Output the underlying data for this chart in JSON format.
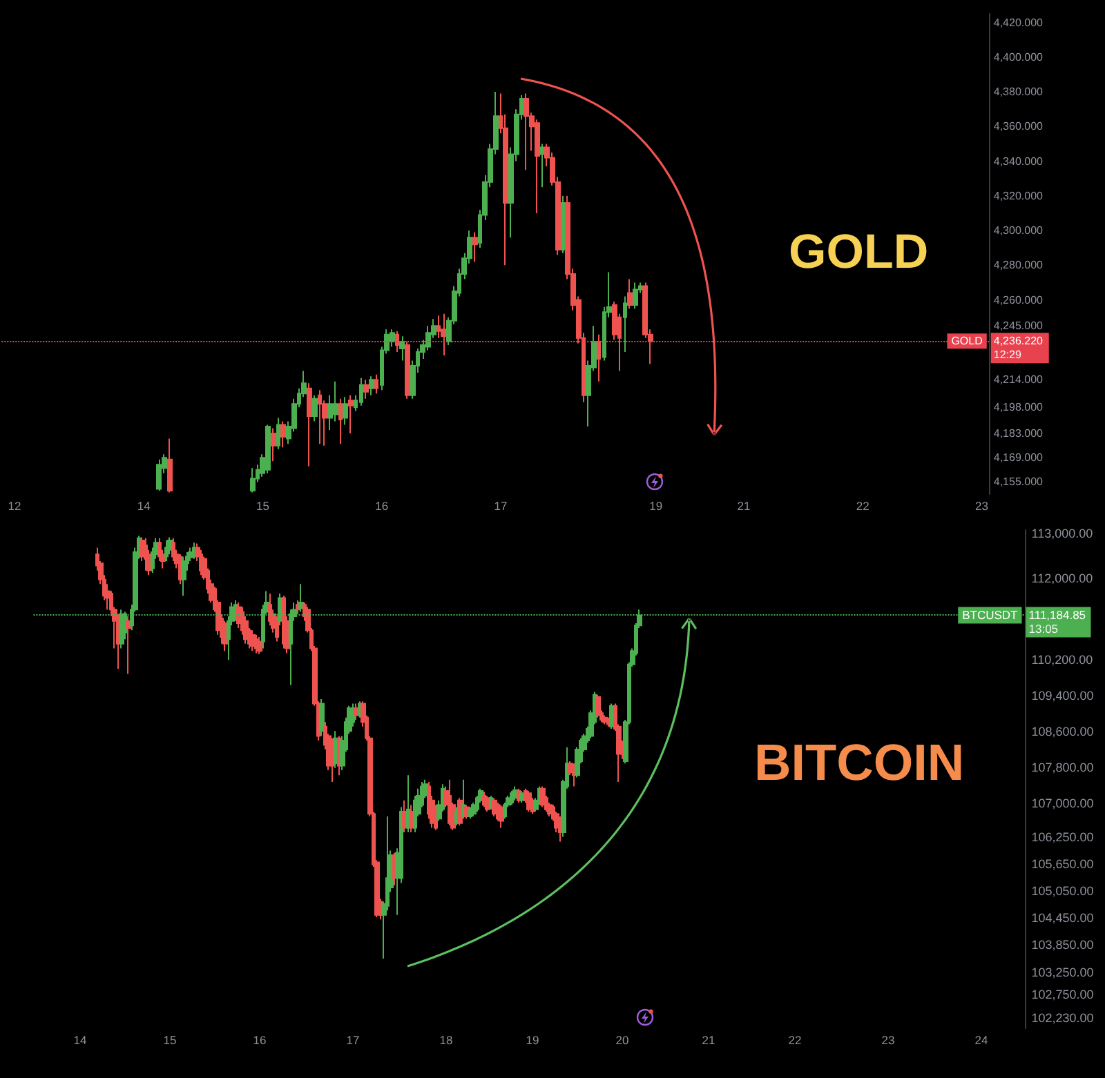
{
  "chart_data": [
    {
      "type": "candlestick",
      "title": "GOLD",
      "categories": [
        null,
        null,
        "12",
        null,
        null,
        null,
        null,
        null,
        null,
        null,
        null,
        null,
        null,
        null,
        null,
        null,
        null,
        null,
        null,
        null,
        null,
        null,
        null,
        null,
        null,
        null,
        null,
        "14",
        null,
        null,
        null,
        null,
        null,
        null,
        null,
        null,
        null,
        null,
        null,
        null,
        null,
        null,
        null,
        null,
        null,
        null,
        null,
        null,
        null,
        null,
        "15",
        null,
        null,
        null,
        null,
        null,
        null,
        null,
        null,
        null,
        null,
        null,
        null,
        null,
        null,
        null,
        null,
        null,
        null,
        null,
        null,
        null,
        null,
        "16",
        null,
        null,
        null,
        null,
        null,
        null,
        null,
        null,
        null,
        null,
        null,
        null,
        null,
        null,
        null,
        null,
        null,
        null,
        null,
        null,
        null,
        null,
        "17",
        null,
        null,
        null,
        null,
        null,
        null,
        null,
        null,
        null,
        null,
        null,
        null,
        null,
        null,
        null,
        null,
        null,
        null,
        null,
        null,
        null,
        null,
        null,
        null,
        null,
        null,
        null,
        null,
        null,
        "19",
        null,
        null,
        null,
        null,
        null,
        null,
        null,
        null,
        null,
        null,
        null,
        null,
        null,
        null,
        null,
        null,
        "21",
        null,
        null,
        null,
        null,
        null,
        null,
        null,
        null,
        null,
        null,
        null,
        null,
        null,
        null,
        null,
        null,
        null,
        null,
        null,
        null,
        null,
        null,
        "22",
        null,
        null,
        null,
        null,
        null,
        null,
        null,
        null,
        null,
        null,
        null,
        null,
        null,
        null,
        null,
        null,
        null,
        null,
        null,
        null,
        null,
        null,
        "23",
        null
      ],
      "ohlc": [
        null,
        null,
        null,
        null,
        null,
        null,
        null,
        null,
        null,
        null,
        null,
        null,
        null,
        null,
        null,
        null,
        null,
        null,
        null,
        null,
        null,
        null,
        null,
        null,
        null,
        null,
        null,
        null,
        null,
        null,
        [
          4151,
          4168,
          4150,
          4165
        ],
        [
          4163,
          4171,
          4160,
          4169
        ],
        [
          4168,
          4180,
          4149,
          4150
        ],
        null,
        null,
        null,
        null,
        null,
        null,
        null,
        null,
        null,
        null,
        null,
        null,
        null,
        null,
        null,
        [
          4150,
          4163,
          4149,
          4157
        ],
        [
          4157,
          4165,
          4155,
          4162
        ],
        [
          4160,
          4171,
          4158,
          4169
        ],
        [
          4162,
          4188,
          4160,
          4187
        ],
        [
          4183,
          4186,
          4167,
          4176
        ],
        [
          4176,
          4192,
          4174,
          4188
        ],
        [
          4188,
          4190,
          4175,
          4181
        ],
        [
          4180,
          4190,
          4177,
          4187
        ],
        [
          4186,
          4203,
          4184,
          4200
        ],
        [
          4200,
          4209,
          4198,
          4206
        ],
        [
          4206,
          4219,
          4204,
          4212
        ],
        [
          4209,
          4212,
          4164,
          4193
        ],
        [
          4193,
          4205,
          4190,
          4203
        ],
        [
          4205,
          4208,
          4177,
          4200
        ],
        [
          4200,
          4202,
          4176,
          4192
        ],
        [
          4192,
          4205,
          4185,
          4200
        ],
        [
          4194,
          4213,
          4190,
          4200
        ],
        [
          4200,
          4203,
          4177,
          4191
        ],
        [
          4192,
          4204,
          4188,
          4200
        ],
        [
          4202,
          4205,
          4183,
          4199
        ],
        [
          4198,
          4205,
          4196,
          4202
        ],
        [
          4201,
          4215,
          4199,
          4211
        ],
        [
          4211,
          4214,
          4203,
          4207
        ],
        [
          4209,
          4216,
          4205,
          4214
        ],
        [
          4214,
          4217,
          4206,
          4209
        ],
        [
          4211,
          4233,
          4208,
          4231
        ],
        [
          4231,
          4243,
          4229,
          4240
        ],
        [
          4236,
          4243,
          4233,
          4241
        ],
        [
          4240,
          4242,
          4230,
          4234
        ],
        [
          4232,
          4239,
          4225,
          4236
        ],
        [
          4234,
          4236,
          4203,
          4205
        ],
        [
          4205,
          4225,
          4203,
          4222
        ],
        [
          4222,
          4232,
          4218,
          4230
        ],
        [
          4230,
          4237,
          4226,
          4234
        ],
        [
          4233,
          4245,
          4231,
          4241
        ],
        [
          4240,
          4249,
          4238,
          4245
        ],
        [
          4245,
          4251,
          4238,
          4242
        ],
        [
          4243,
          4252,
          4228,
          4239
        ],
        [
          4236,
          4250,
          4234,
          4248
        ],
        [
          4248,
          4268,
          4246,
          4265
        ],
        [
          4264,
          4278,
          4262,
          4275
        ],
        [
          4275,
          4287,
          4272,
          4284
        ],
        [
          4284,
          4300,
          4281,
          4296
        ],
        [
          4296,
          4299,
          4282,
          4292
        ],
        [
          4293,
          4312,
          4290,
          4309
        ],
        [
          4309,
          4332,
          4306,
          4328
        ],
        [
          4328,
          4350,
          4325,
          4347
        ],
        [
          4347,
          4380,
          4344,
          4366
        ],
        [
          4366,
          4379,
          4356,
          4359
        ],
        [
          4359,
          4367,
          4280,
          4316
        ],
        [
          4316,
          4348,
          4296,
          4344
        ],
        [
          4344,
          4370,
          4340,
          4367
        ],
        [
          4367,
          4378,
          4364,
          4376
        ],
        [
          4376,
          4379,
          4335,
          4366
        ],
        [
          4366,
          4368,
          4346,
          4360
        ],
        [
          4362,
          4364,
          4310,
          4343
        ],
        [
          4344,
          4350,
          4325,
          4348
        ],
        [
          4348,
          4350,
          4337,
          4342
        ],
        [
          4342,
          4345,
          4326,
          4328
        ],
        [
          4328,
          4331,
          4286,
          4289
        ],
        [
          4289,
          4320,
          4287,
          4316
        ],
        [
          4316,
          4320,
          4272,
          4275
        ],
        [
          4275,
          4278,
          4254,
          4257
        ],
        [
          4260,
          4262,
          4235,
          4238
        ],
        [
          4238,
          4241,
          4201,
          4205
        ],
        [
          4205,
          4225,
          4187,
          4222
        ],
        [
          4221,
          4245,
          4219,
          4236
        ],
        [
          4236,
          4240,
          4213,
          4226
        ],
        [
          4227,
          4256,
          4225,
          4253
        ],
        [
          4253,
          4276,
          4250,
          4256
        ],
        [
          4257,
          4259,
          4237,
          4240
        ],
        [
          4250,
          4252,
          4219,
          4238
        ],
        [
          4250,
          4262,
          4230,
          4258
        ],
        [
          4264,
          4272,
          4255,
          4257
        ],
        [
          4257,
          4270,
          4255,
          4266
        ],
        [
          4266,
          4270,
          4264,
          4268
        ],
        [
          4268,
          4270,
          4238,
          4240
        ],
        [
          4240,
          4243,
          4223,
          4236.22
        ],
        null,
        null,
        null,
        null,
        null,
        null,
        null,
        null,
        null,
        null,
        null,
        null,
        null,
        null,
        null,
        null,
        null,
        null,
        null,
        null,
        null,
        null,
        null,
        null,
        null,
        null,
        null,
        null,
        null,
        null,
        null,
        null,
        null,
        null,
        null,
        null,
        null,
        null,
        null,
        null,
        null,
        null,
        null,
        null,
        null,
        null,
        null,
        null,
        null,
        null,
        null,
        null,
        null,
        null,
        null,
        null,
        null,
        null,
        null,
        null,
        null,
        null,
        null,
        null,
        null
      ],
      "ylim": [
        4148,
        4425
      ],
      "yticks": [
        {
          "value": 4155,
          "label": "4,155.000"
        },
        {
          "value": 4169,
          "label": "4,169.000"
        },
        {
          "value": 4183,
          "label": "4,183.000"
        },
        {
          "value": 4198,
          "label": "4,198.000"
        },
        {
          "value": 4214,
          "label": "4,214.000"
        },
        {
          "value": 4245,
          "label": "4,245.000"
        },
        {
          "value": 4260,
          "label": "4,260.000"
        },
        {
          "value": 4280,
          "label": "4,280.000"
        },
        {
          "value": 4300,
          "label": "4,300.000"
        },
        {
          "value": 4320,
          "label": "4,320.000"
        },
        {
          "value": 4340,
          "label": "4,340.000"
        },
        {
          "value": 4360,
          "label": "4,360.000"
        },
        {
          "value": 4380,
          "label": "4,380.000"
        },
        {
          "value": 4400,
          "label": "4,400.000"
        },
        {
          "value": 4420,
          "label": "4,420.000"
        }
      ],
      "ref_lines": [
        {
          "axis": "y",
          "value": 4236.22,
          "label": "GOLD",
          "color": "#e8424f",
          "line_style": "dotted"
        }
      ],
      "annotations": [
        "4,236.220",
        "12:29"
      ]
    },
    {
      "type": "candlestick",
      "title": "BITCOIN",
      "categories": [
        null,
        null,
        null,
        null,
        null,
        null,
        null,
        null,
        null,
        null,
        null,
        null,
        null,
        "14",
        null,
        null,
        null,
        null,
        null,
        null,
        null,
        null,
        null,
        null,
        null,
        null,
        null,
        null,
        null,
        null,
        null,
        null,
        null,
        null,
        null,
        null,
        null,
        null,
        null,
        "15",
        null,
        null,
        null,
        null,
        null,
        null,
        null,
        null,
        null,
        null,
        null,
        null,
        null,
        null,
        null,
        null,
        null,
        null,
        null,
        null,
        null,
        null,
        null,
        null,
        null,
        "16",
        null,
        null,
        null,
        null,
        null,
        null,
        null,
        null,
        null,
        null,
        null,
        null,
        null,
        null,
        null,
        null,
        null,
        null,
        null,
        null,
        null,
        null,
        null,
        null,
        null,
        null,
        "17",
        null,
        null,
        null,
        null,
        null,
        null,
        null,
        null,
        null,
        null,
        null,
        null,
        null,
        null,
        null,
        null,
        null,
        null,
        null,
        null,
        null,
        null,
        null,
        null,
        null,
        null,
        "18",
        null,
        null,
        null,
        null,
        null,
        null,
        null,
        null,
        null,
        null,
        null,
        null,
        null,
        null,
        null,
        null,
        null,
        null,
        null,
        null,
        null,
        null,
        null,
        null,
        "19",
        null,
        null,
        null,
        null,
        null,
        null,
        null,
        null,
        null,
        null,
        null,
        null,
        null,
        null,
        null,
        null,
        null,
        null,
        null,
        null,
        null,
        null,
        null,
        null,
        null,
        "20",
        null,
        null,
        null,
        null,
        null,
        null,
        null,
        null,
        null,
        null,
        null,
        null,
        null,
        null,
        null,
        null,
        null,
        null,
        null,
        null,
        null,
        null,
        null,
        null,
        "21",
        null,
        null,
        null,
        null,
        null,
        null,
        null,
        null,
        null,
        null,
        null,
        null,
        null,
        null,
        null,
        null,
        null,
        null,
        null,
        null,
        null,
        null,
        null,
        null,
        "22",
        null,
        null,
        null,
        null,
        null,
        null,
        null,
        null,
        null,
        null,
        null,
        null,
        null,
        null,
        null,
        null,
        null,
        null,
        null,
        null,
        null,
        null,
        null,
        null,
        null,
        null,
        "23",
        null,
        null,
        null,
        null,
        null,
        null,
        null,
        null,
        null,
        null,
        null,
        null,
        null,
        null,
        null,
        null,
        null,
        null,
        null,
        null,
        null,
        null,
        null,
        null,
        null,
        null,
        "24",
        null,
        null,
        null,
        null,
        null,
        null,
        null,
        null,
        null,
        null,
        null,
        null
      ],
      "ohlc": [
        null,
        null,
        null,
        null,
        null,
        null,
        null,
        null,
        null,
        null,
        null,
        null,
        null,
        null,
        null,
        null,
        null,
        null,
        [
          112540,
          112690,
          112180,
          112290
        ],
        [
          112340,
          112390,
          111880,
          111980
        ],
        [
          111980,
          112080,
          111520,
          111620
        ],
        [
          111720,
          111880,
          111310,
          111570
        ],
        [
          111670,
          111720,
          111160,
          111310
        ],
        [
          111310,
          111370,
          110450,
          111060
        ],
        [
          111160,
          111210,
          109990,
          110550
        ],
        [
          110550,
          111310,
          110450,
          111210
        ],
        [
          110800,
          111260,
          110650,
          111210
        ],
        [
          111060,
          111160,
          109880,
          110900
        ],
        [
          110960,
          111420,
          110850,
          111310
        ],
        [
          111310,
          112690,
          111260,
          112590
        ],
        [
          112490,
          112950,
          112440,
          112900
        ],
        [
          112850,
          112920,
          112390,
          112490
        ],
        [
          112740,
          112900,
          112180,
          112440
        ],
        [
          112540,
          112640,
          112080,
          112180
        ],
        [
          112230,
          112690,
          112130,
          112590
        ],
        [
          112540,
          112900,
          112440,
          112800
        ],
        [
          112800,
          112900,
          112390,
          112490
        ],
        [
          112540,
          112640,
          112230,
          112390
        ],
        [
          112490,
          112850,
          112390,
          112690
        ],
        [
          112640,
          112920,
          112540,
          112850
        ],
        [
          112800,
          112900,
          112390,
          112490
        ],
        [
          112540,
          112640,
          112230,
          112340
        ],
        [
          112490,
          112540,
          111880,
          111980
        ],
        [
          111980,
          112490,
          111620,
          112390
        ],
        [
          112340,
          112590,
          112180,
          112490
        ],
        [
          112470,
          112690,
          112390,
          112590
        ],
        [
          112540,
          112800,
          112440,
          112690
        ],
        [
          112690,
          112780,
          112390,
          112490
        ],
        [
          112540,
          112640,
          112080,
          112180
        ],
        [
          112440,
          112490,
          111980,
          112030
        ],
        [
          112180,
          112230,
          111670,
          111770
        ],
        [
          111880,
          111980,
          111470,
          111520
        ],
        [
          111770,
          111820,
          111260,
          111310
        ],
        [
          111470,
          111520,
          110750,
          110850
        ],
        [
          111110,
          111210,
          110550,
          110700
        ],
        [
          111010,
          111060,
          110390,
          110550
        ],
        [
          110650,
          111160,
          110190,
          111060
        ],
        [
          111060,
          111470,
          110960,
          111370
        ],
        [
          111210,
          111520,
          111060,
          111420
        ],
        [
          111370,
          111470,
          110900,
          111010
        ],
        [
          111260,
          111370,
          110750,
          110850
        ],
        [
          111060,
          111160,
          110550,
          110650
        ],
        [
          110850,
          110900,
          110450,
          110550
        ],
        [
          110750,
          110850,
          110390,
          110500
        ],
        [
          110650,
          110750,
          110340,
          110450
        ],
        [
          110600,
          110700,
          110320,
          110390
        ],
        [
          110600,
          111420,
          110450,
          111310
        ],
        [
          111260,
          111720,
          111210,
          111470
        ],
        [
          111420,
          111670,
          110960,
          111060
        ],
        [
          111210,
          111310,
          110800,
          110900
        ],
        [
          111060,
          111160,
          110600,
          110700
        ],
        [
          111060,
          111670,
          110960,
          111570
        ],
        [
          111570,
          111620,
          110450,
          110550
        ],
        [
          111060,
          111160,
          110340,
          110450
        ],
        [
          110550,
          111310,
          109630,
          111210
        ],
        [
          111160,
          111470,
          111060,
          111310
        ],
        [
          111420,
          111520,
          111210,
          111310
        ],
        [
          111340,
          111880,
          111260,
          111470
        ],
        [
          111420,
          111470,
          111060,
          111160
        ],
        [
          111310,
          111370,
          110800,
          110850
        ],
        [
          110850,
          110900,
          110390,
          110450
        ],
        [
          110450,
          110500,
          109170,
          109220
        ],
        [
          109220,
          109270,
          108400,
          108500
        ],
        [
          108610,
          109320,
          108500,
          109220
        ],
        [
          108710,
          108810,
          108200,
          108300
        ],
        [
          108500,
          108550,
          107740,
          107840
        ],
        [
          108400,
          108450,
          107480,
          107840
        ],
        [
          107890,
          108610,
          107790,
          108450
        ],
        [
          108450,
          108500,
          107630,
          107840
        ],
        [
          107840,
          108500,
          107740,
          108400
        ],
        [
          108200,
          108910,
          108150,
          108810
        ],
        [
          108610,
          109170,
          108550,
          109120
        ],
        [
          108810,
          109220,
          108710,
          109120
        ],
        [
          109120,
          109220,
          108860,
          108960
        ],
        [
          108960,
          109270,
          108910,
          109220
        ],
        [
          109220,
          109270,
          108710,
          108810
        ],
        [
          108910,
          108960,
          108400,
          108450
        ],
        [
          108450,
          108500,
          106710,
          106770
        ],
        [
          106770,
          106820,
          105590,
          105640
        ],
        [
          105690,
          105740,
          104470,
          104520
        ],
        [
          104820,
          104880,
          104420,
          104520
        ],
        [
          104520,
          104820,
          103550,
          104770
        ],
        [
          104720,
          106710,
          104620,
          105340
        ],
        [
          105130,
          105950,
          105030,
          105850
        ],
        [
          105850,
          105900,
          105180,
          105340
        ],
        [
          105340,
          106000,
          104520,
          105900
        ],
        [
          105340,
          106920,
          105230,
          106820
        ],
        [
          106820,
          107070,
          106360,
          106460
        ],
        [
          106460,
          107630,
          106360,
          106870
        ],
        [
          106820,
          106970,
          106360,
          106460
        ],
        [
          106460,
          107170,
          106360,
          107070
        ],
        [
          106770,
          107330,
          106710,
          107170
        ],
        [
          106970,
          107480,
          106920,
          107380
        ],
        [
          107170,
          107530,
          107120,
          107430
        ],
        [
          107380,
          107480,
          106660,
          106770
        ],
        [
          107070,
          107170,
          106460,
          106560
        ],
        [
          106920,
          106970,
          106410,
          106460
        ],
        [
          106660,
          107070,
          106610,
          106970
        ],
        [
          106870,
          107430,
          106820,
          107330
        ],
        [
          107280,
          107380,
          106920,
          106970
        ],
        [
          107170,
          107530,
          106510,
          106560
        ],
        [
          106970,
          107020,
          106410,
          106460
        ],
        [
          106560,
          106920,
          106510,
          106820
        ],
        [
          107070,
          107120,
          106510,
          106560
        ],
        [
          106710,
          107530,
          106660,
          106970
        ],
        [
          106920,
          106970,
          106660,
          106710
        ],
        [
          106710,
          106920,
          106660,
          106870
        ],
        [
          106770,
          107020,
          106710,
          106970
        ],
        [
          106870,
          107170,
          106820,
          107120
        ],
        [
          107070,
          107330,
          107020,
          107280
        ],
        [
          107170,
          107260,
          106920,
          106970
        ],
        [
          107120,
          107170,
          106820,
          106870
        ],
        [
          106920,
          107170,
          106870,
          107120
        ],
        [
          107070,
          107120,
          106710,
          106770
        ],
        [
          106970,
          107020,
          106610,
          106660
        ],
        [
          106920,
          106970,
          106460,
          106610
        ],
        [
          106710,
          107020,
          106660,
          106970
        ],
        [
          106970,
          107170,
          106920,
          107120
        ],
        [
          107020,
          107280,
          106970,
          107230
        ],
        [
          107120,
          107380,
          107070,
          107300
        ],
        [
          107280,
          107330,
          107020,
          107070
        ],
        [
          107070,
          107280,
          107020,
          107230
        ],
        [
          107280,
          107330,
          107020,
          107070
        ],
        [
          107230,
          107280,
          106820,
          106870
        ],
        [
          107070,
          107120,
          106770,
          106820
        ],
        [
          106870,
          107120,
          106820,
          107070
        ],
        [
          107020,
          107380,
          106970,
          107330
        ],
        [
          107330,
          107380,
          106920,
          106970
        ],
        [
          107120,
          107170,
          106820,
          106870
        ],
        [
          106970,
          107020,
          106710,
          106770
        ],
        [
          106920,
          106970,
          106610,
          106660
        ],
        [
          106770,
          106820,
          106360,
          106460
        ],
        [
          106660,
          106710,
          106150,
          106360
        ],
        [
          106360,
          107530,
          106260,
          107480
        ],
        [
          107380,
          108250,
          107330,
          107890
        ],
        [
          107890,
          107940,
          107630,
          107690
        ],
        [
          107840,
          107890,
          107380,
          107630
        ],
        [
          107630,
          108250,
          107580,
          108200
        ],
        [
          107940,
          108450,
          107890,
          108400
        ],
        [
          108200,
          108550,
          108150,
          108500
        ],
        [
          108400,
          108710,
          108350,
          108660
        ],
        [
          108500,
          109070,
          108450,
          109010
        ],
        [
          108810,
          109480,
          108760,
          109420
        ],
        [
          109370,
          109420,
          108910,
          108960
        ],
        [
          109010,
          109070,
          108810,
          108860
        ],
        [
          108910,
          108960,
          108760,
          108810
        ],
        [
          108860,
          108910,
          108710,
          108760
        ],
        [
          108710,
          109220,
          108660,
          109170
        ],
        [
          109170,
          109220,
          108610,
          108660
        ],
        [
          108710,
          108760,
          107480,
          108100
        ],
        [
          108350,
          108400,
          107990,
          108100
        ],
        [
          107940,
          108860,
          107890,
          108810
        ],
        [
          108810,
          110140,
          108760,
          110090
        ],
        [
          110090,
          110450,
          110040,
          110390
        ],
        [
          110340,
          111010,
          110290,
          110960
        ],
        [
          110960,
          111310,
          110900,
          111184.85
        ],
        null,
        null,
        null,
        null,
        null,
        null,
        null,
        null,
        null,
        null,
        null,
        null,
        null,
        null,
        null,
        null,
        null,
        null,
        null,
        null,
        null,
        null,
        null,
        null,
        null,
        null,
        null,
        null,
        null,
        null,
        null,
        null,
        null,
        null,
        null,
        null,
        null,
        null,
        null,
        null,
        null,
        null,
        null,
        null,
        null,
        null,
        null,
        null,
        null,
        null,
        null,
        null,
        null,
        null,
        null,
        null,
        null,
        null,
        null,
        null,
        null,
        null,
        null,
        null,
        null,
        null,
        null,
        null,
        null,
        null,
        null,
        null,
        null,
        null,
        null,
        null,
        null,
        null,
        null,
        null,
        null,
        null,
        null,
        null,
        null,
        null,
        null,
        null,
        null,
        null,
        null,
        null,
        null,
        null,
        null,
        null,
        null,
        null,
        null,
        null,
        null,
        null,
        null,
        null,
        null,
        null,
        null,
        null,
        null,
        null,
        null
      ],
      "ylim": [
        102000,
        113080
      ],
      "yticks": [
        {
          "value": 102230,
          "label": "102,230.00"
        },
        {
          "value": 102750,
          "label": "102,750.00"
        },
        {
          "value": 103250,
          "label": "103,250.00"
        },
        {
          "value": 103850,
          "label": "103,850.00"
        },
        {
          "value": 104450,
          "label": "104,450.00"
        },
        {
          "value": 105050,
          "label": "105,050.00"
        },
        {
          "value": 105650,
          "label": "105,650.00"
        },
        {
          "value": 106250,
          "label": "106,250.00"
        },
        {
          "value": 107000,
          "label": "107,000.00"
        },
        {
          "value": 107800,
          "label": "107,800.00"
        },
        {
          "value": 108600,
          "label": "108,600.00"
        },
        {
          "value": 109400,
          "label": "109,400.00"
        },
        {
          "value": 110200,
          "label": "110,200.00"
        },
        {
          "value": 112000,
          "label": "112,000.00"
        },
        {
          "value": 113000,
          "label": "113,000.00"
        }
      ],
      "ref_lines": [
        {
          "axis": "y",
          "value": 111184.85,
          "label": "BTCUSDT",
          "color": "#4caf50",
          "line_style": "dotted"
        }
      ],
      "annotations": [
        "111,184.85",
        "13:05"
      ]
    }
  ]
}
